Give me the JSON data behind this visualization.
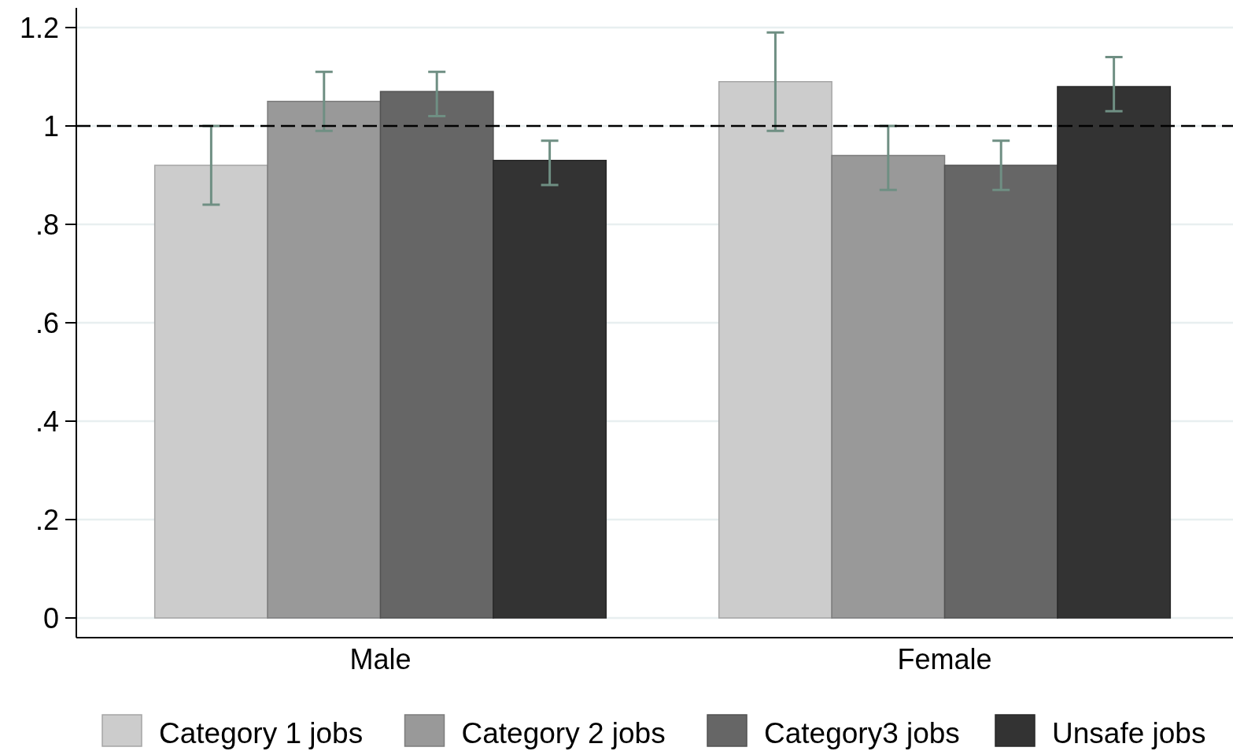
{
  "chart_data": {
    "type": "bar",
    "categories": [
      "Male",
      "Female"
    ],
    "series": [
      {
        "name": "Category 1 jobs",
        "color": "#cccccc",
        "values": [
          0.92,
          1.09
        ],
        "errors": [
          [
            0.84,
            1.0
          ],
          [
            0.99,
            1.19
          ]
        ]
      },
      {
        "name": "Category 2 jobs",
        "color": "#999999",
        "values": [
          1.05,
          0.94
        ],
        "errors": [
          [
            0.99,
            1.11
          ],
          [
            0.87,
            1.0
          ]
        ]
      },
      {
        "name": "Category3 jobs",
        "color": "#666666",
        "values": [
          1.07,
          0.92
        ],
        "errors": [
          [
            1.02,
            1.11
          ],
          [
            0.87,
            0.97
          ]
        ]
      },
      {
        "name": "Unsafe jobs",
        "color": "#333333",
        "values": [
          0.93,
          1.08
        ],
        "errors": [
          [
            0.88,
            0.97
          ],
          [
            1.03,
            1.14
          ]
        ]
      }
    ],
    "ylim": [
      -0.04,
      1.24
    ],
    "yticks": [
      0,
      {
        "value": 0.2,
        "label": ".2"
      },
      {
        "value": 0.4,
        "label": ".4"
      },
      {
        "value": 0.6,
        "label": ".6"
      },
      {
        "value": 0.8,
        "label": ".8"
      },
      1,
      1.2
    ],
    "grid": "y",
    "legend": "bottom",
    "ref_lines": [
      {
        "axis": "y",
        "value": 1,
        "line_style": "dashed",
        "color": "#000000"
      }
    ]
  }
}
